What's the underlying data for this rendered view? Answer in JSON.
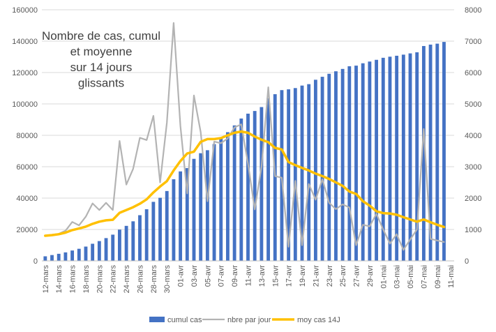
{
  "chart_data": {
    "type": "bar",
    "title_lines": [
      "Nombre de cas, cumul",
      "et moyenne",
      "sur 14 jours",
      "glissants"
    ],
    "xlabel": "",
    "ylabel": "",
    "y_left": {
      "min": 0,
      "max": 160000,
      "ticks": [
        "0",
        "20000",
        "40000",
        "60000",
        "80000",
        "100000",
        "120000",
        "140000",
        "160000"
      ]
    },
    "y_right": {
      "min": 0,
      "max": 8000,
      "ticks": [
        "0",
        "1000",
        "2000",
        "3000",
        "4000",
        "5000",
        "6000",
        "7000",
        "8000"
      ]
    },
    "x_tick_labels": [
      "12-mars",
      "14-mars",
      "16-mars",
      "18-mars",
      "20-mars",
      "22-mars",
      "24-mars",
      "26-mars",
      "28-mars",
      "30-mars",
      "01-avr",
      "03-avr",
      "05-avr",
      "07-avr",
      "09-avr",
      "11-avr",
      "13-avr",
      "15-avr",
      "17-avr",
      "19-avr",
      "21-avr",
      "23-avr",
      "25-avr",
      "27-avr",
      "29-avr",
      "01-mai",
      "03-mai",
      "05-mai",
      "07-mai",
      "09-mai",
      "11-mai"
    ],
    "categories": [
      "12-mars",
      "13-mars",
      "14-mars",
      "15-mars",
      "16-mars",
      "17-mars",
      "18-mars",
      "19-mars",
      "20-mars",
      "21-mars",
      "22-mars",
      "23-mars",
      "24-mars",
      "25-mars",
      "26-mars",
      "27-mars",
      "28-mars",
      "29-mars",
      "30-mars",
      "31-mars",
      "01-avr",
      "02-avr",
      "03-avr",
      "04-avr",
      "05-avr",
      "06-avr",
      "07-avr",
      "08-avr",
      "09-avr",
      "10-avr",
      "11-avr",
      "12-avr",
      "13-avr",
      "14-avr",
      "15-avr",
      "16-avr",
      "17-avr",
      "18-avr",
      "19-avr",
      "20-avr",
      "21-avr",
      "22-avr",
      "23-avr",
      "24-avr",
      "25-avr",
      "26-avr",
      "27-avr",
      "28-avr",
      "29-avr",
      "30-avr",
      "01-mai",
      "02-mai",
      "03-mai",
      "04-mai",
      "05-mai",
      "06-mai",
      "07-mai",
      "08-mai",
      "09-mai",
      "10-mai"
    ],
    "series": [
      {
        "name": "cumul cas",
        "axis": "left",
        "color": "#4472C4",
        "kind": "bar",
        "values": [
          2900,
          3700,
          4500,
          5400,
          6600,
          7700,
          9100,
          10900,
          12600,
          14500,
          16700,
          19900,
          22300,
          25200,
          29100,
          32900,
          37600,
          40200,
          44500,
          52000,
          57000,
          59100,
          65000,
          68600,
          70500,
          74400,
          78200,
          82000,
          86300,
          90700,
          93800,
          95500,
          98000,
          103600,
          106200,
          108800,
          109300,
          110100,
          111700,
          112600,
          115400,
          117300,
          119200,
          120800,
          122300,
          124000,
          124400,
          125900,
          127000,
          128100,
          129400,
          130100,
          130700,
          131400,
          132200,
          132900,
          136900,
          137800,
          138400,
          139500
        ]
      },
      {
        "name": "nbre par jour",
        "axis": "right",
        "color": "#B3B3B3",
        "kind": "line",
        "values": [
          800,
          830,
          860,
          960,
          1240,
          1130,
          1410,
          1830,
          1620,
          1850,
          1620,
          3820,
          2430,
          2930,
          3920,
          3850,
          4620,
          2500,
          4400,
          7580,
          4300,
          2150,
          5270,
          4100,
          1900,
          3800,
          3750,
          3900,
          4250,
          4350,
          3100,
          1640,
          3000,
          5530,
          2700,
          2650,
          450,
          2550,
          500,
          2450,
          1950,
          2600,
          1850,
          1650,
          1800,
          1700,
          500,
          1150,
          1100,
          1500,
          1000,
          550,
          850,
          350,
          680,
          1000,
          4200,
          700,
          650,
          600
        ]
      },
      {
        "name": "moy cas 14J",
        "axis": "right",
        "color": "#FFC000",
        "kind": "line",
        "values": [
          800,
          820,
          850,
          900,
          980,
          1030,
          1090,
          1180,
          1250,
          1290,
          1310,
          1530,
          1620,
          1710,
          1820,
          1960,
          2180,
          2370,
          2540,
          2880,
          3180,
          3420,
          3480,
          3790,
          3880,
          3880,
          3910,
          4000,
          4080,
          4120,
          4080,
          3960,
          3860,
          3780,
          3600,
          3550,
          3150,
          3050,
          2960,
          2880,
          2780,
          2700,
          2610,
          2500,
          2390,
          2210,
          2130,
          1900,
          1760,
          1580,
          1520,
          1510,
          1470,
          1390,
          1320,
          1250,
          1320,
          1230,
          1150,
          1080
        ]
      }
    ],
    "grid": true,
    "legend_position": "bottom"
  }
}
